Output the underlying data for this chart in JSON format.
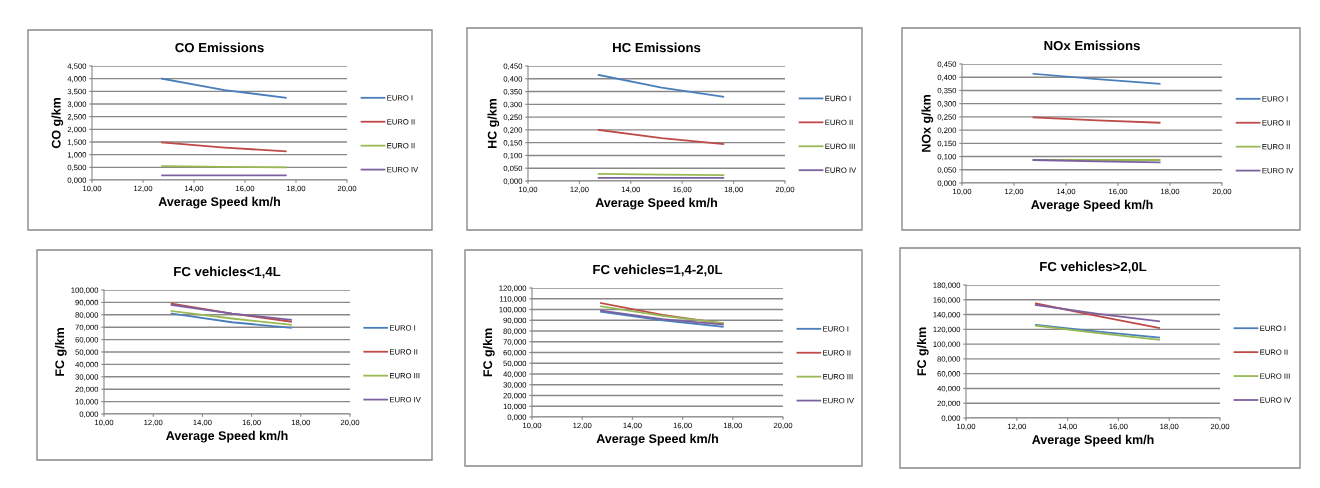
{
  "chart_data": [
    {
      "type": "line",
      "title": "CO Emissions",
      "xlabel": "Average Speed km/h",
      "ylabel": "CO g/km",
      "grid": "y",
      "legend": "right",
      "xlim": [
        10,
        20
      ],
      "xticks": [
        {
          "value": 10,
          "label": "10,00"
        },
        {
          "value": 12,
          "label": "12,00"
        },
        {
          "value": 14,
          "label": "14,00"
        },
        {
          "value": 16,
          "label": "16,00"
        },
        {
          "value": 18,
          "label": "18,00"
        },
        {
          "value": 20,
          "label": "20,00"
        }
      ],
      "ylim": [
        0,
        4.5
      ],
      "yticks": [
        {
          "value": 0,
          "label": "0,000"
        },
        {
          "value": 0.5,
          "label": "0,500"
        },
        {
          "value": 1,
          "label": "1,000"
        },
        {
          "value": 1.5,
          "label": "1,500"
        },
        {
          "value": 2,
          "label": "2,000"
        },
        {
          "value": 2.5,
          "label": "2,500"
        },
        {
          "value": 3,
          "label": "3,000"
        },
        {
          "value": 3.5,
          "label": "3,500"
        },
        {
          "value": 4,
          "label": "4,000"
        },
        {
          "value": 4.5,
          "label": "4,500"
        }
      ],
      "x": [
        12.75,
        15.2,
        17.6
      ],
      "series": [
        {
          "name": "EURO I",
          "color": "#4a7ebb",
          "values": [
            4.0,
            3.55,
            3.25
          ]
        },
        {
          "name": "EURO II",
          "color": "#be4b48",
          "values": [
            1.48,
            1.28,
            1.13
          ]
        },
        {
          "name": "EURO II",
          "color": "#98b954",
          "values": [
            0.55,
            0.52,
            0.5
          ]
        },
        {
          "name": "EURO IV",
          "color": "#7d60a0",
          "values": [
            0.18,
            0.18,
            0.18
          ]
        }
      ]
    },
    {
      "type": "line",
      "title": "HC Emissions",
      "xlabel": "Average Speed km/h",
      "ylabel": "HC g/km",
      "grid": "y",
      "legend": "right",
      "xlim": [
        10,
        20
      ],
      "xticks": [
        {
          "value": 10,
          "label": "10,00"
        },
        {
          "value": 12,
          "label": "12,00"
        },
        {
          "value": 14,
          "label": "14,00"
        },
        {
          "value": 16,
          "label": "16,00"
        },
        {
          "value": 18,
          "label": "18,00"
        },
        {
          "value": 20,
          "label": "20,00"
        }
      ],
      "ylim": [
        0,
        0.45
      ],
      "yticks": [
        {
          "value": 0,
          "label": "0,000"
        },
        {
          "value": 0.05,
          "label": "0,050"
        },
        {
          "value": 0.1,
          "label": "0,100"
        },
        {
          "value": 0.15,
          "label": "0,150"
        },
        {
          "value": 0.2,
          "label": "0,200"
        },
        {
          "value": 0.25,
          "label": "0,250"
        },
        {
          "value": 0.3,
          "label": "0,300"
        },
        {
          "value": 0.35,
          "label": "0,350"
        },
        {
          "value": 0.4,
          "label": "0,400"
        },
        {
          "value": 0.45,
          "label": "0,450"
        }
      ],
      "x": [
        12.75,
        15.2,
        17.6
      ],
      "series": [
        {
          "name": "EURO I",
          "color": "#4a7ebb",
          "values": [
            0.415,
            0.365,
            0.33
          ]
        },
        {
          "name": "EURO II",
          "color": "#be4b48",
          "values": [
            0.2,
            0.168,
            0.145
          ]
        },
        {
          "name": "EURO III",
          "color": "#98b954",
          "values": [
            0.028,
            0.025,
            0.023
          ]
        },
        {
          "name": "EURO IV",
          "color": "#7d60a0",
          "values": [
            0.012,
            0.012,
            0.012
          ]
        }
      ]
    },
    {
      "type": "line",
      "title": "NOx Emissions",
      "xlabel": "Average Speed km/h",
      "ylabel": "NOx g/km",
      "grid": "y",
      "legend": "right",
      "xlim": [
        10,
        20
      ],
      "xticks": [
        {
          "value": 10,
          "label": "10,00"
        },
        {
          "value": 12,
          "label": "12,00"
        },
        {
          "value": 14,
          "label": "14,00"
        },
        {
          "value": 16,
          "label": "16,00"
        },
        {
          "value": 18,
          "label": "18,00"
        },
        {
          "value": 20,
          "label": "20,00"
        }
      ],
      "ylim": [
        0,
        0.45
      ],
      "yticks": [
        {
          "value": 0,
          "label": "0,000"
        },
        {
          "value": 0.05,
          "label": "0,050"
        },
        {
          "value": 0.1,
          "label": "0,100"
        },
        {
          "value": 0.15,
          "label": "0,150"
        },
        {
          "value": 0.2,
          "label": "0,200"
        },
        {
          "value": 0.25,
          "label": "0,250"
        },
        {
          "value": 0.3,
          "label": "0,300"
        },
        {
          "value": 0.35,
          "label": "0,350"
        },
        {
          "value": 0.4,
          "label": "0,400"
        },
        {
          "value": 0.45,
          "label": "0,450"
        }
      ],
      "x": [
        12.75,
        15.2,
        17.6
      ],
      "series": [
        {
          "name": "EURO I",
          "color": "#4a7ebb",
          "values": [
            0.413,
            0.393,
            0.375
          ]
        },
        {
          "name": "EURO II",
          "color": "#be4b48",
          "values": [
            0.248,
            0.237,
            0.228
          ]
        },
        {
          "name": "EURO II",
          "color": "#98b954",
          "values": [
            0.087,
            0.087,
            0.087
          ]
        },
        {
          "name": "EURO IV",
          "color": "#7d60a0",
          "values": [
            0.087,
            0.082,
            0.078
          ]
        }
      ]
    },
    {
      "type": "line",
      "title": "FC vehicles<1,4L",
      "xlabel": "Average Speed km/h",
      "ylabel": "FC g/km",
      "grid": "y",
      "legend": "right",
      "xlim": [
        10,
        20
      ],
      "xticks": [
        {
          "value": 10,
          "label": "10,00"
        },
        {
          "value": 12,
          "label": "12,00"
        },
        {
          "value": 14,
          "label": "14,00"
        },
        {
          "value": 16,
          "label": "16,00"
        },
        {
          "value": 18,
          "label": "18,00"
        },
        {
          "value": 20,
          "label": "20,00"
        }
      ],
      "ylim": [
        0,
        100
      ],
      "yticks": [
        {
          "value": 0,
          "label": "0,000"
        },
        {
          "value": 10,
          "label": "10,000"
        },
        {
          "value": 20,
          "label": "20,000"
        },
        {
          "value": 30,
          "label": "30,000"
        },
        {
          "value": 40,
          "label": "40,000"
        },
        {
          "value": 50,
          "label": "50,000"
        },
        {
          "value": 60,
          "label": "60,000"
        },
        {
          "value": 70,
          "label": "70,000"
        },
        {
          "value": 80,
          "label": "80,000"
        },
        {
          "value": 90,
          "label": "90,000"
        },
        {
          "value": 100,
          "label": "100,000"
        }
      ],
      "x": [
        12.75,
        15.2,
        17.6
      ],
      "series": [
        {
          "name": "EURO I",
          "color": "#4a7ebb",
          "values": [
            81,
            74,
            69.5
          ]
        },
        {
          "name": "EURO II",
          "color": "#be4b48",
          "values": [
            89,
            81,
            74.5
          ]
        },
        {
          "name": "EURO III",
          "color": "#98b954",
          "values": [
            83,
            77,
            72
          ]
        },
        {
          "name": "EURO IV",
          "color": "#7d60a0",
          "values": [
            88,
            81,
            76
          ]
        }
      ]
    },
    {
      "type": "line",
      "title": "FC vehicles=1,4-2,0L",
      "xlabel": "Average Speed km/h",
      "ylabel": "FC g/km",
      "grid": "y",
      "legend": "right",
      "xlim": [
        10,
        20
      ],
      "xticks": [
        {
          "value": 10,
          "label": "10,00"
        },
        {
          "value": 12,
          "label": "12,00"
        },
        {
          "value": 14,
          "label": "14,00"
        },
        {
          "value": 16,
          "label": "16,00"
        },
        {
          "value": 18,
          "label": "18,00"
        },
        {
          "value": 20,
          "label": "20,00"
        }
      ],
      "ylim": [
        0,
        120
      ],
      "yticks": [
        {
          "value": 0,
          "label": "0,000"
        },
        {
          "value": 10,
          "label": "10,000"
        },
        {
          "value": 20,
          "label": "20,000"
        },
        {
          "value": 30,
          "label": "30,000"
        },
        {
          "value": 40,
          "label": "40,000"
        },
        {
          "value": 50,
          "label": "50,000"
        },
        {
          "value": 60,
          "label": "60,000"
        },
        {
          "value": 70,
          "label": "70,000"
        },
        {
          "value": 80,
          "label": "80,000"
        },
        {
          "value": 90,
          "label": "90,000"
        },
        {
          "value": 100,
          "label": "100,000"
        },
        {
          "value": 110,
          "label": "110,000"
        },
        {
          "value": 120,
          "label": "120,000"
        }
      ],
      "x": [
        12.75,
        15.2,
        17.6
      ],
      "series": [
        {
          "name": "EURO I",
          "color": "#4a7ebb",
          "values": [
            98,
            90,
            84
          ]
        },
        {
          "name": "EURO II",
          "color": "#be4b48",
          "values": [
            106,
            95,
            87
          ]
        },
        {
          "name": "EURO III",
          "color": "#98b954",
          "values": [
            103,
            94,
            87.5
          ]
        },
        {
          "name": "EURO IV",
          "color": "#7d60a0",
          "values": [
            99,
            91,
            86
          ]
        }
      ]
    },
    {
      "type": "line",
      "title": "FC vehicles>2,0L",
      "xlabel": "Average Speed km/h",
      "ylabel": "FC g/km",
      "grid": "y",
      "legend": "right",
      "xlim": [
        10,
        20
      ],
      "xticks": [
        {
          "value": 10,
          "label": "10,00"
        },
        {
          "value": 12,
          "label": "12,00"
        },
        {
          "value": 14,
          "label": "14,00"
        },
        {
          "value": 16,
          "label": "16,00"
        },
        {
          "value": 18,
          "label": "18,00"
        },
        {
          "value": 20,
          "label": "20,00"
        }
      ],
      "ylim": [
        0,
        180
      ],
      "yticks": [
        {
          "value": 0,
          "label": "0,000"
        },
        {
          "value": 20,
          "label": "20,000"
        },
        {
          "value": 40,
          "label": "40,000"
        },
        {
          "value": 60,
          "label": "60,000"
        },
        {
          "value": 80,
          "label": "80,000"
        },
        {
          "value": 100,
          "label": "100,000"
        },
        {
          "value": 120,
          "label": "120,000"
        },
        {
          "value": 140,
          "label": "140,000"
        },
        {
          "value": 160,
          "label": "160,000"
        },
        {
          "value": 180,
          "label": "180,000"
        }
      ],
      "x": [
        12.75,
        15.2,
        17.6
      ],
      "series": [
        {
          "name": "EURO I",
          "color": "#4a7ebb",
          "values": [
            126,
            117,
            109
          ]
        },
        {
          "name": "EURO II",
          "color": "#be4b48",
          "values": [
            155,
            138,
            122
          ]
        },
        {
          "name": "EURO III",
          "color": "#98b954",
          "values": [
            125,
            115,
            106
          ]
        },
        {
          "name": "EURO IV",
          "color": "#7d60a0",
          "values": [
            153,
            141,
            131
          ]
        }
      ]
    }
  ]
}
